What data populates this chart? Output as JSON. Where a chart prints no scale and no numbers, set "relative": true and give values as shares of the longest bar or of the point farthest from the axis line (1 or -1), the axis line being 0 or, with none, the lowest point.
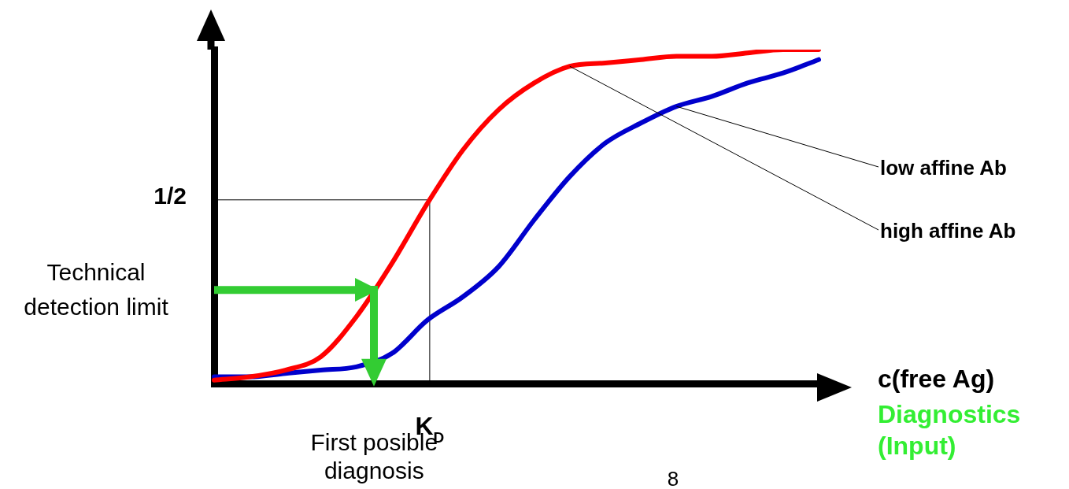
{
  "chart_data": {
    "type": "line",
    "relative": true,
    "xlabel": "c(free Ag)",
    "categories": [
      null,
      null,
      null,
      null,
      null,
      null,
      null,
      null,
      null,
      null,
      null,
      null,
      null,
      null,
      null,
      null,
      null,
      null
    ],
    "series": [
      {
        "name": "high affine Ab",
        "color": "#ff0000",
        "values": [
          0.01,
          0.02,
          0.04,
          0.08,
          0.2,
          0.36,
          0.54,
          0.7,
          0.82,
          0.9,
          0.95,
          0.96,
          0.97,
          0.98,
          0.98,
          0.99,
          1.0,
          1.0
        ]
      },
      {
        "name": "low affine Ab",
        "color": "#0000cc",
        "values": [
          0.02,
          0.02,
          0.03,
          0.04,
          0.05,
          0.09,
          0.19,
          0.26,
          0.35,
          0.49,
          0.62,
          0.72,
          0.78,
          0.83,
          0.86,
          0.9,
          0.93,
          0.97
        ]
      }
    ],
    "ref_lines": [
      {
        "axis": "y",
        "value": 0.55,
        "label": "1/2"
      },
      {
        "axis": "y",
        "value": 0.28,
        "label": "Technical detection limit",
        "color": "#33cc33"
      }
    ],
    "annotations": [
      "K$_{D}$",
      "First posible diagnosis",
      "Diagnostics (Input)",
      "8"
    ],
    "legend": false,
    "marker": "none",
    "line_style": "solid"
  }
}
